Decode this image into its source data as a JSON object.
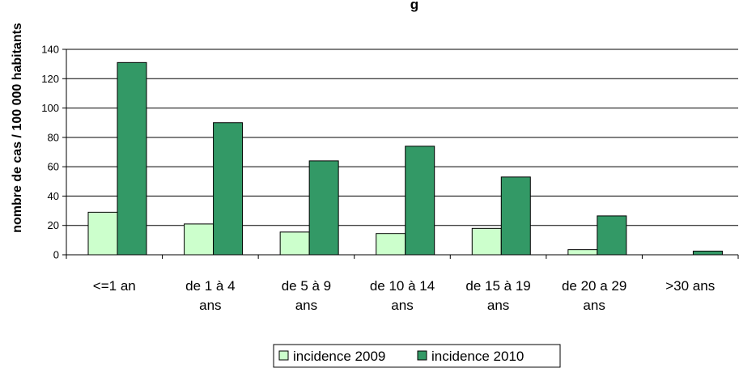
{
  "chart_data": {
    "type": "bar",
    "title": "g",
    "xlabel": "",
    "ylabel": "nombre de cas / 100 000 habitants",
    "ylim": [
      0,
      140
    ],
    "yticks": [
      0,
      20,
      40,
      60,
      80,
      100,
      120,
      140
    ],
    "grid": true,
    "legend_position": "bottom",
    "categories": [
      [
        "<=1 an"
      ],
      [
        "de 1 à 4",
        "ans"
      ],
      [
        "de 5 à 9",
        "ans"
      ],
      [
        "de 10 à 14",
        "ans"
      ],
      [
        "de 15 à 19",
        "ans"
      ],
      [
        "de 20 a 29",
        "ans"
      ],
      [
        ">30 ans"
      ]
    ],
    "series": [
      {
        "name": "incidence 2009",
        "color": "#ccffcc",
        "values": [
          29,
          21,
          15.5,
          14.5,
          18,
          3.5,
          0
        ]
      },
      {
        "name": "incidence 2010",
        "color": "#339966",
        "values": [
          131,
          90,
          64,
          74,
          53,
          26.5,
          2.5
        ]
      }
    ]
  }
}
